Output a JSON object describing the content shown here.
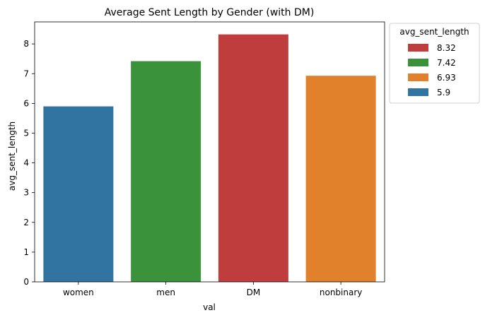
{
  "chart_data": {
    "type": "bar",
    "title": "Average Sent Length by Gender (with DM)",
    "xlabel": "val",
    "ylabel": "avg_sent_length",
    "categories": [
      "women",
      "men",
      "DM",
      "nonbinary"
    ],
    "values": [
      5.9,
      7.42,
      8.32,
      6.93
    ],
    "colors": [
      "#3274a1",
      "#3a923a",
      "#c03d3e",
      "#e1812c"
    ],
    "ylim": [
      0,
      8.74
    ],
    "yticks": [
      0,
      1,
      2,
      3,
      4,
      5,
      6,
      7,
      8
    ],
    "grid": false,
    "legend": {
      "title": "avg_sent_length",
      "placement": "outside-top-right",
      "entries": [
        {
          "label": "8.32",
          "color": "#c03d3e"
        },
        {
          "label": "7.42",
          "color": "#3a923a"
        },
        {
          "label": "6.93",
          "color": "#e1812c"
        },
        {
          "label": "5.9",
          "color": "#3274a1"
        }
      ]
    }
  }
}
